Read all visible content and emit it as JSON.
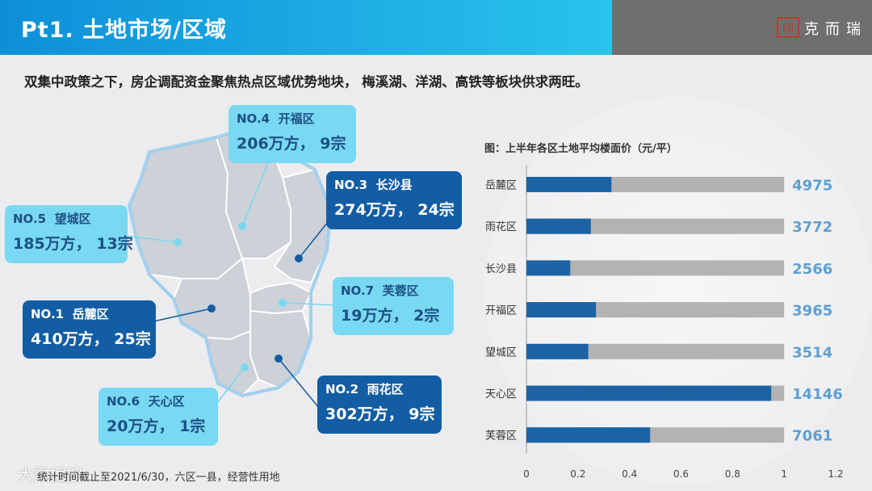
{
  "header": {
    "title": "Pt1. 土地市场/区域",
    "brand": "克而瑞",
    "colors": {
      "header_blue": "#1aa8e3",
      "header_gray": "#6f6f6f",
      "seal_red": "#c0392b"
    }
  },
  "subtitle": "双集中政策之下，房企调配资金聚焦热点区域优势地块， 梅溪湖、洋湖、高铁等板块供求两旺。",
  "callouts": [
    {
      "rank": "NO.4",
      "district": "开福区",
      "stats_a": "206万方，",
      "stats_b": "9宗",
      "style": "light"
    },
    {
      "rank": "NO.3",
      "district": "长沙县",
      "stats_a": "274万方，",
      "stats_b": "24宗",
      "style": "dark"
    },
    {
      "rank": "NO.5",
      "district": "望城区",
      "stats_a": "185万方，",
      "stats_b": "13宗",
      "style": "light"
    },
    {
      "rank": "NO.7",
      "district": "芙蓉区",
      "stats_a": "19万方，",
      "stats_b": "2宗",
      "style": "light"
    },
    {
      "rank": "NO.1",
      "district": "岳麓区",
      "stats_a": "410万方，",
      "stats_b": "25宗",
      "style": "dark"
    },
    {
      "rank": "NO.2",
      "district": "雨花区",
      "stats_a": "302万方，",
      "stats_b": "9宗",
      "style": "dark"
    },
    {
      "rank": "NO.6",
      "district": "天心区",
      "stats_a": "20万方，",
      "stats_b": "1宗",
      "style": "light"
    }
  ],
  "chart_data": {
    "type": "bar",
    "orientation": "horizontal",
    "title": "图：上半年各区土地平均楼面价（元/平）",
    "categories": [
      "岳麓区",
      "雨花区",
      "长沙县",
      "开福区",
      "望城区",
      "天心区",
      "芙蓉区"
    ],
    "values": [
      4975,
      3772,
      2566,
      3965,
      3514,
      14146,
      7061
    ],
    "bar_fraction": [
      0.33,
      0.25,
      0.17,
      0.27,
      0.24,
      0.95,
      0.48
    ],
    "xlim": [
      0,
      1.2
    ],
    "xticks": [
      "0",
      "0.2",
      "0.4",
      "0.6",
      "0.8",
      "1",
      "1.2"
    ],
    "colors": {
      "bar": "#1c63a6",
      "track": "#b3b3b3",
      "value_label": "#5e9fd4"
    }
  },
  "footnote": "统计时间截止至2021/6/30，六区一县，经营性用地",
  "watermark": "大数据控"
}
